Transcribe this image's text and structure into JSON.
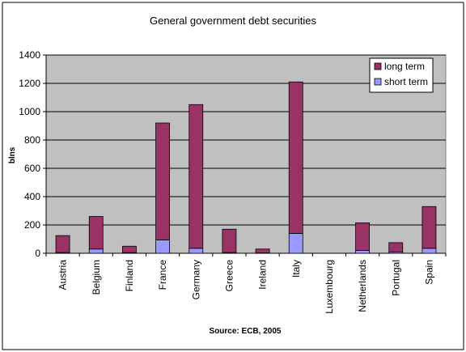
{
  "chart_data": {
    "type": "bar",
    "stacked": true,
    "title": "General government debt securities",
    "ylabel": "blns",
    "xlabel": "",
    "annotation": "Source: ECB, 2005",
    "ylim": [
      0,
      1400
    ],
    "yticks": [
      0,
      200,
      400,
      600,
      800,
      1000,
      1200,
      1400
    ],
    "grid": true,
    "legend_position": "top-right",
    "categories": [
      "Austria",
      "Belgium",
      "Finland",
      "France",
      "Germany",
      "Greece",
      "Ireland",
      "Italy",
      "Luxembourg",
      "Netherlands",
      "Portugal",
      "Spain"
    ],
    "series": [
      {
        "name": "short term",
        "color": "#9999ff",
        "values": [
          5,
          30,
          5,
          95,
          35,
          5,
          3,
          140,
          0,
          20,
          10,
          35
        ]
      },
      {
        "name": "long term",
        "color": "#993366",
        "values": [
          120,
          230,
          45,
          825,
          1015,
          165,
          27,
          1070,
          0,
          195,
          65,
          295
        ]
      }
    ],
    "legend_order": [
      "long term",
      "short term"
    ],
    "plot_background": "#c0c0c0"
  }
}
